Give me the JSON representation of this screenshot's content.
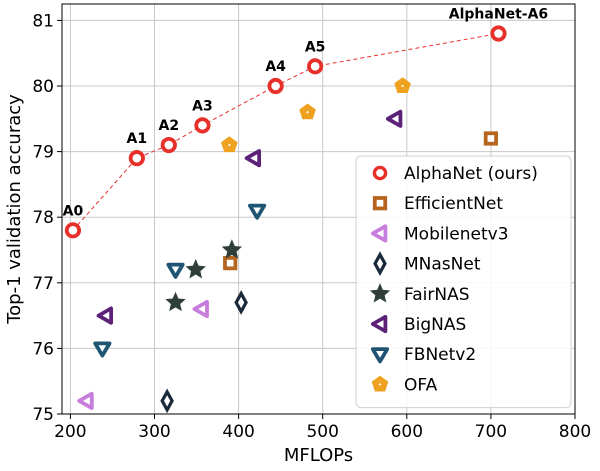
{
  "chart_data": {
    "type": "scatter",
    "xlabel": "MFLOPs",
    "ylabel": "Top-1 validation accuracy",
    "xlim": [
      190,
      800
    ],
    "ylim": [
      75,
      81.25
    ],
    "xticks": [
      200,
      300,
      400,
      500,
      600,
      700,
      800
    ],
    "yticks": [
      75,
      76,
      77,
      78,
      79,
      80,
      81
    ],
    "grid": true,
    "legend_position": "lower-right",
    "series": [
      {
        "name": "AlphaNet (ours)",
        "marker": "ring",
        "color": "#e8302a",
        "line": "dashed",
        "points": [
          {
            "x": 203,
            "y": 77.8,
            "label": "A0"
          },
          {
            "x": 279,
            "y": 78.9,
            "label": "A1"
          },
          {
            "x": 317,
            "y": 79.1,
            "label": "A2"
          },
          {
            "x": 357,
            "y": 79.4,
            "label": "A3"
          },
          {
            "x": 444,
            "y": 80.0,
            "label": "A4"
          },
          {
            "x": 491,
            "y": 80.3,
            "label": "A5"
          },
          {
            "x": 709,
            "y": 80.8,
            "label": "AlphaNet-A6"
          }
        ]
      },
      {
        "name": "EfficientNet",
        "marker": "square",
        "color": "#b5651d",
        "points": [
          {
            "x": 390,
            "y": 77.3
          },
          {
            "x": 700,
            "y": 79.2
          }
        ]
      },
      {
        "name": "Mobilenetv3",
        "marker": "triangle-left",
        "color": "#c77ddb",
        "points": [
          {
            "x": 219,
            "y": 75.2
          },
          {
            "x": 356,
            "y": 76.6
          }
        ]
      },
      {
        "name": "MNasNet",
        "marker": "diamond",
        "color": "#1a2a3a",
        "points": [
          {
            "x": 315,
            "y": 75.2
          },
          {
            "x": 403,
            "y": 76.7
          }
        ]
      },
      {
        "name": "FairNAS",
        "marker": "star",
        "color": "#2f3e3b",
        "points": [
          {
            "x": 325,
            "y": 76.7
          },
          {
            "x": 349,
            "y": 77.2
          },
          {
            "x": 392,
            "y": 77.5
          }
        ]
      },
      {
        "name": "BigNAS",
        "marker": "triangle-left",
        "color": "#5b2277",
        "points": [
          {
            "x": 242,
            "y": 76.5
          },
          {
            "x": 418,
            "y": 78.9
          },
          {
            "x": 586,
            "y": 79.5
          }
        ]
      },
      {
        "name": "FBNetv2",
        "marker": "triangle-down",
        "color": "#1f5573",
        "points": [
          {
            "x": 238,
            "y": 76.0
          },
          {
            "x": 325,
            "y": 77.2
          },
          {
            "x": 422,
            "y": 78.1
          }
        ]
      },
      {
        "name": "OFA",
        "marker": "pentagon",
        "color": "#efa21f",
        "points": [
          {
            "x": 389,
            "y": 79.1
          },
          {
            "x": 482,
            "y": 79.6
          },
          {
            "x": 595,
            "y": 80.0
          }
        ]
      }
    ]
  }
}
